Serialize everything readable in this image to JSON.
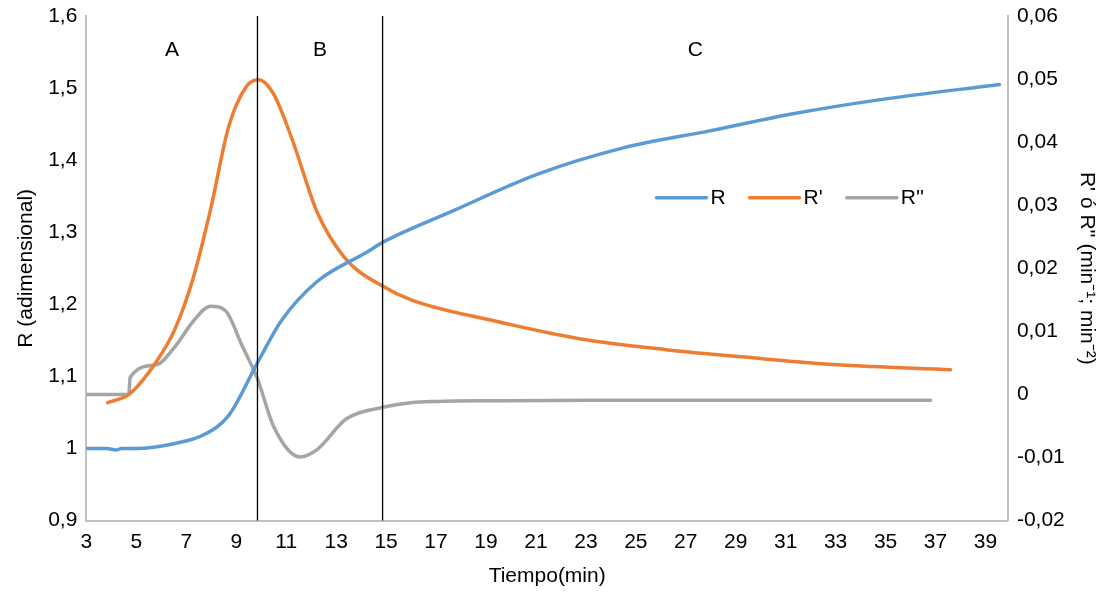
{
  "chart_data": {
    "type": "line",
    "xlabel": "Tiempo(min)",
    "ylabel": "R (adimensional)",
    "y2label": "R' ó R'' (min⁻¹; min⁻²)",
    "xlim": [
      3,
      39.9
    ],
    "xticks": [
      3,
      5,
      7,
      9,
      11,
      13,
      15,
      17,
      19,
      21,
      23,
      25,
      27,
      29,
      31,
      33,
      35,
      37,
      39
    ],
    "ylim": [
      0.9,
      1.6
    ],
    "yticks": [
      {
        "value": 0.9,
        "label": "0,9"
      },
      {
        "value": 1,
        "label": "1"
      },
      {
        "value": 1.1,
        "label": "1,1"
      },
      {
        "value": 1.2,
        "label": "1,2"
      },
      {
        "value": 1.3,
        "label": "1,3"
      },
      {
        "value": 1.4,
        "label": "1,4"
      },
      {
        "value": 1.5,
        "label": "1,5"
      },
      {
        "value": 1.6,
        "label": "1,6"
      }
    ],
    "y2lim": [
      -0.02,
      0.06
    ],
    "y2ticks": [
      {
        "value": -0.02,
        "label": "-0,02"
      },
      {
        "value": -0.01,
        "label": "-0,01"
      },
      {
        "value": 0,
        "label": "0"
      },
      {
        "value": 0.01,
        "label": "0,01"
      },
      {
        "value": 0.02,
        "label": "0,02"
      },
      {
        "value": 0.03,
        "label": "0,03"
      },
      {
        "value": 0.04,
        "label": "0,04"
      },
      {
        "value": 0.05,
        "label": "0,05"
      },
      {
        "value": 0.06,
        "label": "0,06"
      }
    ],
    "grid": false,
    "legend": "right",
    "marker": "none",
    "line_style": "solid",
    "series": [
      {
        "name": "R",
        "color": "#5b9bd5",
        "x": [
          3,
          3.8,
          4.2,
          4.4,
          5,
          6.55,
          7.7,
          8.7,
          9.85,
          10.8,
          12.25,
          14.26,
          14.86,
          17.7,
          21.1,
          24.5,
          28,
          31.4,
          34.8,
          39.56
        ],
        "values": [
          1.0,
          1.0,
          0.998,
          1.0,
          1.0,
          1.007,
          1.019,
          1.046,
          1.119,
          1.177,
          1.232,
          1.273,
          1.286,
          1.33,
          1.381,
          1.417,
          1.441,
          1.465,
          1.484,
          1.505
        ]
      },
      {
        "name": "R'",
        "color": "#ed7d31",
        "axis": "y2",
        "x": [
          3.85,
          4.7,
          5.8,
          6.55,
          7.28,
          7.97,
          8.7,
          9.4,
          9.9,
          10.5,
          11.25,
          12.25,
          13.4,
          14.8,
          16,
          19.4,
          22.8,
          26.2,
          29.7,
          33.1,
          37.6
        ],
        "values": [
          -0.0013,
          0.0,
          0.0052,
          0.0104,
          0.0185,
          0.0293,
          0.0425,
          0.0488,
          0.0499,
          0.0476,
          0.0403,
          0.0288,
          0.0214,
          0.0173,
          0.015,
          0.0116,
          0.0088,
          0.0071,
          0.0058,
          0.0047,
          0.0039
        ]
      },
      {
        "name": "R''",
        "color": "#a5a5a5",
        "axis": "y2",
        "x": [
          3,
          4.7,
          4.75,
          5.8,
          6.55,
          7.28,
          7.97,
          8.56,
          9.25,
          9.85,
          10.5,
          11.55,
          12.25,
          13.4,
          14.8,
          16,
          17,
          19.4,
          25,
          30,
          36.8
        ],
        "values": [
          0,
          0,
          0.0027,
          0.0047,
          0.0076,
          0.0116,
          0.014,
          0.0133,
          0.0076,
          0.0025,
          -0.0051,
          -0.0099,
          -0.0087,
          -0.0039,
          -0.0021,
          -0.0013,
          -0.0011,
          -0.001,
          -0.0009,
          -0.0009,
          -0.0009
        ]
      }
    ],
    "ref_lines": [
      {
        "axis": "x",
        "value": 9.85,
        "color": "#000000"
      },
      {
        "axis": "x",
        "value": 14.86,
        "color": "#000000"
      }
    ],
    "annotations": [
      "A",
      "B",
      "C"
    ]
  }
}
